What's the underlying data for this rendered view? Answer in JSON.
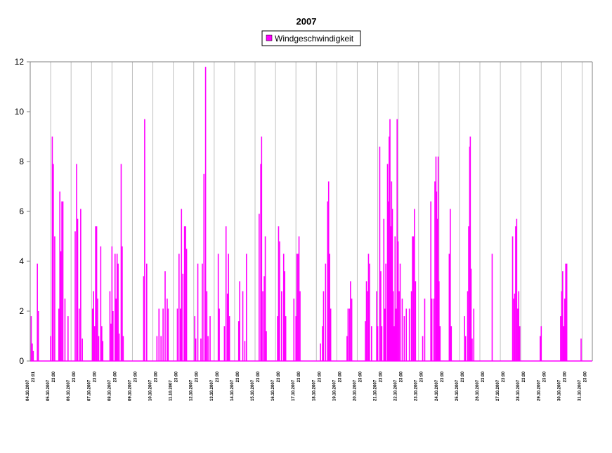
{
  "chart_data": {
    "type": "bar",
    "title": "2007",
    "xlabel": "",
    "ylabel": "",
    "ylim": [
      0,
      12
    ],
    "yticks": [
      "0",
      "2",
      "4",
      "6",
      "8",
      "10",
      "12"
    ],
    "grid": "vertical",
    "legend_position": "top-center",
    "series": [
      {
        "name": "Windgeschwindigkeit",
        "color": "#ff00ff"
      }
    ],
    "x_tick_labels": [
      {
        "date": "04.10.2007",
        "time": "23:01"
      },
      {
        "date": "05.10.2007",
        "time": "23:00"
      },
      {
        "date": "06.10.2007",
        "time": "23:00"
      },
      {
        "date": "07.10.2007",
        "time": "23:00"
      },
      {
        "date": "08.10.2007",
        "time": "23:00"
      },
      {
        "date": "09.10.2007",
        "time": "23:00"
      },
      {
        "date": "10.10.2007",
        "time": "23:00"
      },
      {
        "date": "11.10.2007",
        "time": "23:00"
      },
      {
        "date": "12.10.2007",
        "time": "23:00"
      },
      {
        "date": "13.10.2007",
        "time": "23:00"
      },
      {
        "date": "14.10.2007",
        "time": "23:00"
      },
      {
        "date": "15.10.2007",
        "time": "23:00"
      },
      {
        "date": "16.10.2007",
        "time": "23:00"
      },
      {
        "date": "17.10.2007",
        "time": "23:00"
      },
      {
        "date": "18.10.2007",
        "time": "23:00"
      },
      {
        "date": "19.10.2007",
        "time": "23:00"
      },
      {
        "date": "20.10.2007",
        "time": "23:00"
      },
      {
        "date": "21.10.2007",
        "time": "23:00"
      },
      {
        "date": "22.10.2007",
        "time": "23:00"
      },
      {
        "date": "23.10.2007",
        "time": "23:00"
      },
      {
        "date": "24.10.2007",
        "time": "23:00"
      },
      {
        "date": "25.10.2007",
        "time": "23:00"
      },
      {
        "date": "26.10.2007",
        "time": "23:00"
      },
      {
        "date": "27.10.2007",
        "time": "23:00"
      },
      {
        "date": "28.10.2007",
        "time": "23:00"
      },
      {
        "date": "29.10.2007",
        "time": "23:00"
      },
      {
        "date": "30.10.2007",
        "time": "23:00"
      },
      {
        "date": "31.10.2007",
        "time": "23:00"
      }
    ],
    "x_range_days": [
      0,
      27.5
    ],
    "data": [
      [
        0.05,
        1.8
      ],
      [
        0.1,
        0.7
      ],
      [
        0.15,
        0.4
      ],
      [
        0.35,
        3.9
      ],
      [
        0.4,
        2.0
      ],
      [
        1.0,
        1.0
      ],
      [
        1.08,
        9.0
      ],
      [
        1.13,
        7.9
      ],
      [
        1.2,
        5.0
      ],
      [
        1.4,
        2.1
      ],
      [
        1.45,
        6.8
      ],
      [
        1.5,
        4.4
      ],
      [
        1.55,
        6.4
      ],
      [
        1.6,
        6.4
      ],
      [
        1.7,
        2.5
      ],
      [
        1.85,
        1.8
      ],
      [
        2.2,
        5.2
      ],
      [
        2.27,
        7.9
      ],
      [
        2.32,
        5.7
      ],
      [
        2.4,
        2.1
      ],
      [
        2.47,
        6.1
      ],
      [
        2.55,
        0.9
      ],
      [
        3.05,
        2.1
      ],
      [
        3.1,
        2.8
      ],
      [
        3.15,
        1.4
      ],
      [
        3.2,
        5.4
      ],
      [
        3.25,
        5.4
      ],
      [
        3.3,
        2.5
      ],
      [
        3.35,
        1.0
      ],
      [
        3.45,
        4.6
      ],
      [
        3.5,
        1.4
      ],
      [
        3.55,
        0.8
      ],
      [
        3.9,
        2.8
      ],
      [
        3.95,
        1.5
      ],
      [
        4.0,
        4.6
      ],
      [
        4.05,
        2.0
      ],
      [
        4.15,
        4.3
      ],
      [
        4.2,
        2.5
      ],
      [
        4.25,
        4.3
      ],
      [
        4.3,
        3.9
      ],
      [
        4.35,
        1.1
      ],
      [
        4.45,
        7.9
      ],
      [
        4.5,
        4.6
      ],
      [
        4.55,
        1.0
      ],
      [
        5.55,
        3.4
      ],
      [
        5.6,
        9.7
      ],
      [
        5.7,
        3.9
      ],
      [
        6.2,
        1.0
      ],
      [
        6.3,
        2.1
      ],
      [
        6.4,
        1.0
      ],
      [
        6.5,
        2.1
      ],
      [
        6.6,
        3.6
      ],
      [
        6.7,
        2.5
      ],
      [
        6.75,
        2.1
      ],
      [
        7.2,
        2.1
      ],
      [
        7.28,
        4.3
      ],
      [
        7.35,
        2.1
      ],
      [
        7.4,
        6.1
      ],
      [
        7.47,
        3.5
      ],
      [
        7.55,
        5.4
      ],
      [
        7.6,
        5.4
      ],
      [
        7.65,
        4.5
      ],
      [
        8.05,
        1.8
      ],
      [
        8.1,
        0.9
      ],
      [
        8.2,
        3.9
      ],
      [
        8.35,
        0.9
      ],
      [
        8.42,
        3.9
      ],
      [
        8.5,
        7.5
      ],
      [
        8.58,
        11.8
      ],
      [
        8.64,
        2.8
      ],
      [
        8.7,
        1.0
      ],
      [
        8.8,
        1.8
      ],
      [
        9.2,
        4.3
      ],
      [
        9.25,
        2.1
      ],
      [
        9.5,
        1.4
      ],
      [
        9.58,
        5.4
      ],
      [
        9.65,
        2.7
      ],
      [
        9.7,
        4.3
      ],
      [
        9.75,
        1.8
      ],
      [
        10.2,
        1.6
      ],
      [
        10.25,
        3.2
      ],
      [
        10.4,
        2.8
      ],
      [
        10.5,
        0.8
      ],
      [
        10.58,
        4.3
      ],
      [
        11.2,
        5.9
      ],
      [
        11.28,
        7.9
      ],
      [
        11.32,
        9.0
      ],
      [
        11.38,
        2.8
      ],
      [
        11.45,
        3.4
      ],
      [
        11.5,
        5.0
      ],
      [
        11.55,
        1.2
      ],
      [
        12.1,
        1.8
      ],
      [
        12.15,
        5.4
      ],
      [
        12.2,
        4.8
      ],
      [
        12.3,
        2.8
      ],
      [
        12.4,
        4.3
      ],
      [
        12.45,
        3.6
      ],
      [
        12.5,
        1.8
      ],
      [
        12.9,
        2.5
      ],
      [
        13.0,
        1.8
      ],
      [
        13.05,
        4.3
      ],
      [
        13.1,
        4.3
      ],
      [
        13.15,
        5.0
      ],
      [
        13.2,
        2.8
      ],
      [
        14.2,
        0.7
      ],
      [
        14.3,
        1.4
      ],
      [
        14.35,
        2.8
      ],
      [
        14.45,
        3.9
      ],
      [
        14.55,
        6.4
      ],
      [
        14.6,
        7.2
      ],
      [
        14.65,
        4.3
      ],
      [
        14.7,
        2.1
      ],
      [
        15.5,
        1.0
      ],
      [
        15.55,
        2.1
      ],
      [
        15.62,
        2.1
      ],
      [
        15.67,
        3.2
      ],
      [
        15.73,
        2.5
      ],
      [
        16.4,
        1.6
      ],
      [
        16.45,
        3.2
      ],
      [
        16.5,
        2.8
      ],
      [
        16.55,
        4.3
      ],
      [
        16.6,
        3.9
      ],
      [
        16.7,
        1.4
      ],
      [
        16.95,
        2.8
      ],
      [
        17.0,
        1.4
      ],
      [
        17.1,
        8.6
      ],
      [
        17.15,
        3.6
      ],
      [
        17.2,
        1.4
      ],
      [
        17.3,
        5.7
      ],
      [
        17.35,
        2.1
      ],
      [
        17.4,
        3.9
      ],
      [
        17.48,
        7.9
      ],
      [
        17.52,
        6.4
      ],
      [
        17.56,
        9.0
      ],
      [
        17.6,
        9.7
      ],
      [
        17.64,
        5.4
      ],
      [
        17.68,
        7.2
      ],
      [
        17.72,
        6.1
      ],
      [
        17.76,
        2.8
      ],
      [
        17.8,
        1.4
      ],
      [
        17.85,
        5.0
      ],
      [
        17.9,
        2.1
      ],
      [
        17.95,
        9.7
      ],
      [
        18.0,
        4.8
      ],
      [
        18.05,
        2.8
      ],
      [
        18.1,
        3.9
      ],
      [
        18.2,
        2.5
      ],
      [
        18.3,
        1.8
      ],
      [
        18.4,
        2.1
      ],
      [
        18.55,
        2.1
      ],
      [
        18.65,
        2.8
      ],
      [
        18.7,
        5.0
      ],
      [
        18.75,
        5.0
      ],
      [
        18.8,
        6.1
      ],
      [
        18.85,
        3.2
      ],
      [
        19.2,
        1.0
      ],
      [
        19.3,
        2.5
      ],
      [
        19.6,
        6.4
      ],
      [
        19.65,
        2.5
      ],
      [
        19.75,
        2.5
      ],
      [
        19.8,
        7.2
      ],
      [
        19.85,
        8.2
      ],
      [
        19.88,
        6.8
      ],
      [
        19.92,
        5.7
      ],
      [
        19.96,
        8.2
      ],
      [
        20.0,
        3.2
      ],
      [
        20.05,
        1.4
      ],
      [
        20.5,
        4.3
      ],
      [
        20.55,
        6.1
      ],
      [
        20.6,
        1.4
      ],
      [
        21.25,
        1.8
      ],
      [
        21.3,
        1.0
      ],
      [
        21.4,
        2.8
      ],
      [
        21.45,
        5.4
      ],
      [
        21.5,
        8.6
      ],
      [
        21.53,
        9.0
      ],
      [
        21.57,
        3.7
      ],
      [
        21.62,
        0.9
      ],
      [
        21.7,
        2.1
      ],
      [
        22.6,
        4.3
      ],
      [
        23.6,
        5.0
      ],
      [
        23.65,
        2.5
      ],
      [
        23.7,
        2.7
      ],
      [
        23.75,
        5.4
      ],
      [
        23.8,
        5.7
      ],
      [
        23.85,
        2.1
      ],
      [
        23.9,
        2.8
      ],
      [
        23.95,
        1.4
      ],
      [
        24.95,
        1.0
      ],
      [
        25.0,
        1.4
      ],
      [
        25.95,
        1.8
      ],
      [
        26.0,
        2.8
      ],
      [
        26.05,
        3.6
      ],
      [
        26.1,
        1.4
      ],
      [
        26.15,
        2.5
      ],
      [
        26.2,
        3.9
      ],
      [
        26.25,
        3.9
      ],
      [
        26.95,
        0.9
      ]
    ]
  }
}
